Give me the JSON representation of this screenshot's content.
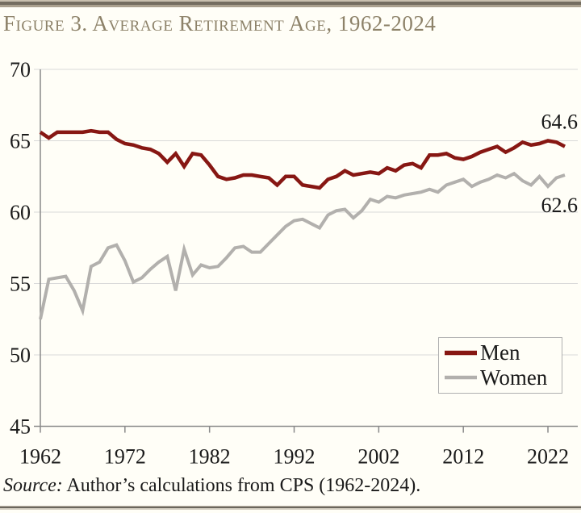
{
  "page": {
    "title": "Figure 3. Average Retirement Age, 1962-2024",
    "source_prefix": "Source:",
    "source_text": " Author’s calculations from CPS (1962-2024)."
  },
  "chart_data": {
    "type": "line",
    "title": "Figure 3. Average Retirement Age, 1962-2024",
    "xlim": [
      1962,
      2024
    ],
    "ylim": [
      45,
      70
    ],
    "grid": true,
    "legend_position": "lower-right",
    "x_ticks": [
      1962,
      1972,
      1982,
      1992,
      2002,
      2012,
      2022
    ],
    "y_ticks": [
      45,
      50,
      55,
      60,
      65,
      70
    ],
    "colors": {
      "men": "#871713",
      "women": "#b2b0ad",
      "grid": "#d9d9d9",
      "axis": "#8a8a8a",
      "title": "#8d8269",
      "background": "#fffef7",
      "legend_border": "#b0b0b0"
    },
    "x": [
      1962,
      1963,
      1964,
      1965,
      1966,
      1967,
      1968,
      1969,
      1970,
      1971,
      1972,
      1973,
      1974,
      1975,
      1976,
      1977,
      1978,
      1979,
      1980,
      1981,
      1982,
      1983,
      1984,
      1985,
      1986,
      1987,
      1988,
      1989,
      1990,
      1991,
      1992,
      1993,
      1994,
      1995,
      1996,
      1997,
      1998,
      1999,
      2000,
      2001,
      2002,
      2003,
      2004,
      2005,
      2006,
      2007,
      2008,
      2009,
      2010,
      2011,
      2012,
      2013,
      2014,
      2015,
      2016,
      2017,
      2018,
      2019,
      2020,
      2021,
      2022,
      2023,
      2024
    ],
    "series": [
      {
        "name": "Men",
        "color": "#871713",
        "stroke_width": 4.5,
        "end_label": "64.6",
        "values": [
          65.6,
          65.2,
          65.6,
          65.6,
          65.6,
          65.6,
          65.7,
          65.6,
          65.6,
          65.1,
          64.8,
          64.7,
          64.5,
          64.4,
          64.1,
          63.5,
          64.1,
          63.2,
          64.1,
          64.0,
          63.3,
          62.5,
          62.3,
          62.4,
          62.6,
          62.6,
          62.5,
          62.4,
          61.9,
          62.5,
          62.5,
          61.9,
          61.8,
          61.7,
          62.3,
          62.5,
          62.9,
          62.6,
          62.7,
          62.8,
          62.7,
          63.1,
          62.9,
          63.3,
          63.4,
          63.1,
          64.0,
          64.0,
          64.1,
          63.8,
          63.7,
          63.9,
          64.2,
          64.4,
          64.6,
          64.2,
          64.5,
          64.9,
          64.7,
          64.8,
          65.0,
          64.9,
          64.6
        ]
      },
      {
        "name": "Women",
        "color": "#b2b0ad",
        "stroke_width": 4,
        "end_label": "62.6",
        "values": [
          52.5,
          55.3,
          55.4,
          55.5,
          54.5,
          53.1,
          56.2,
          56.5,
          57.5,
          57.7,
          56.6,
          55.1,
          55.4,
          56.0,
          56.5,
          56.9,
          54.5,
          57.4,
          55.6,
          56.3,
          56.1,
          56.2,
          56.8,
          57.5,
          57.6,
          57.2,
          57.2,
          57.8,
          58.4,
          59.0,
          59.4,
          59.5,
          59.2,
          58.9,
          59.8,
          60.1,
          60.2,
          59.6,
          60.1,
          60.9,
          60.7,
          61.1,
          61.0,
          61.2,
          61.3,
          61.4,
          61.6,
          61.4,
          61.9,
          62.1,
          62.3,
          61.8,
          62.1,
          62.3,
          62.6,
          62.4,
          62.7,
          62.2,
          61.9,
          62.5,
          61.8,
          62.4,
          62.6
        ]
      }
    ]
  }
}
